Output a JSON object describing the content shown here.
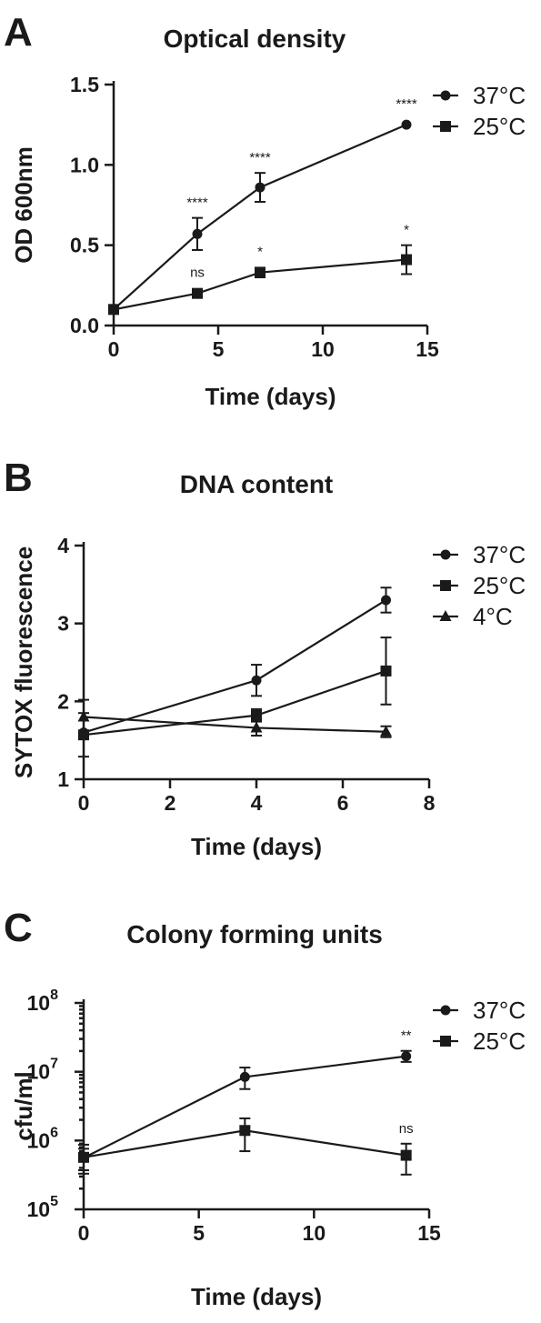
{
  "chart_data": [
    {
      "panel": "A",
      "type": "line",
      "title": "Optical density",
      "xlabel": "Time (days)",
      "ylabel": "OD 600nm",
      "xlim": [
        0,
        15
      ],
      "ylim": [
        0,
        1.5
      ],
      "x_ticks": [
        0,
        5,
        10,
        15
      ],
      "x_tick_labels": [
        "0",
        "5",
        "10",
        "15"
      ],
      "y_ticks": [
        0,
        0.5,
        1.0,
        1.5
      ],
      "y_tick_labels": [
        "0.0",
        "0.5",
        "1.0",
        "1.5"
      ],
      "y_scale": "linear",
      "legend_position": "top-right",
      "series": [
        {
          "name": "37°C",
          "marker": "circle",
          "x": [
            0,
            4,
            7,
            14
          ],
          "y": [
            0.1,
            0.57,
            0.86,
            1.25
          ],
          "err": [
            0,
            0.1,
            0.09,
            0.0
          ],
          "annotations": [
            "",
            "****",
            "****",
            "****"
          ]
        },
        {
          "name": "25°C",
          "marker": "square",
          "x": [
            0,
            4,
            7,
            14
          ],
          "y": [
            0.1,
            0.2,
            0.33,
            0.41
          ],
          "err": [
            0,
            0.0,
            0.03,
            0.09
          ],
          "annotations": [
            "",
            "ns",
            "*",
            "*"
          ]
        }
      ]
    },
    {
      "panel": "B",
      "type": "line",
      "title": "DNA content",
      "xlabel": "Time (days)",
      "ylabel": "SYTOX fluorescence",
      "xlim": [
        0,
        8
      ],
      "ylim": [
        1,
        4
      ],
      "x_ticks": [
        0,
        2,
        4,
        6,
        8
      ],
      "x_tick_labels": [
        "0",
        "2",
        "4",
        "6",
        "8"
      ],
      "y_ticks": [
        1,
        2,
        3,
        4
      ],
      "y_tick_labels": [
        "1",
        "2",
        "3",
        "4"
      ],
      "y_scale": "linear",
      "legend_position": "top-right",
      "series": [
        {
          "name": "37°C",
          "marker": "circle",
          "x": [
            0,
            4,
            7
          ],
          "y": [
            1.6,
            2.27,
            3.3
          ],
          "err": [
            0,
            0.2,
            0.16
          ],
          "annotations": [
            "",
            "",
            ""
          ]
        },
        {
          "name": "25°C",
          "marker": "square",
          "x": [
            0,
            4,
            7
          ],
          "y": [
            1.57,
            1.82,
            2.39
          ],
          "err": [
            0.28,
            0.08,
            0.43
          ],
          "annotations": [
            "",
            "",
            ""
          ]
        },
        {
          "name": "4°C",
          "marker": "triangle",
          "x": [
            0,
            4,
            7
          ],
          "y": [
            1.8,
            1.66,
            1.61
          ],
          "err": [
            0.22,
            0.1,
            0.07
          ],
          "annotations": [
            "",
            "",
            ""
          ]
        }
      ]
    },
    {
      "panel": "C",
      "type": "line",
      "title": "Colony forming units",
      "xlabel": "Time (days)",
      "ylabel": "cfu/ml",
      "xlim": [
        0,
        15
      ],
      "ylim": [
        100000,
        100000000
      ],
      "x_ticks": [
        0,
        5,
        10,
        15
      ],
      "x_tick_labels": [
        "0",
        "5",
        "10",
        "15"
      ],
      "y_ticks": [
        100000,
        1000000,
        10000000,
        100000000
      ],
      "y_tick_base": "10",
      "y_tick_exponents": [
        "5",
        "6",
        "7",
        "8"
      ],
      "y_scale": "log",
      "legend_position": "top-right",
      "series": [
        {
          "name": "37°C",
          "marker": "circle",
          "x": [
            0,
            7,
            14
          ],
          "y": [
            560000,
            8400000,
            16800000
          ],
          "err_low": [
            330000,
            5600000,
            13900000
          ],
          "err_high": [
            870000,
            11500000,
            20100000
          ],
          "annotations": [
            "",
            "",
            "**"
          ]
        },
        {
          "name": "25°C",
          "marker": "square",
          "x": [
            0,
            7,
            14
          ],
          "y": [
            570000,
            1400000,
            610000
          ],
          "err_low": [
            370000,
            700000,
            320000
          ],
          "err_high": [
            760000,
            2100000,
            900000
          ],
          "annotations": [
            "",
            "",
            "ns"
          ]
        }
      ]
    }
  ],
  "panels": [
    {
      "letter": "A"
    },
    {
      "letter": "B"
    },
    {
      "letter": "C"
    }
  ]
}
